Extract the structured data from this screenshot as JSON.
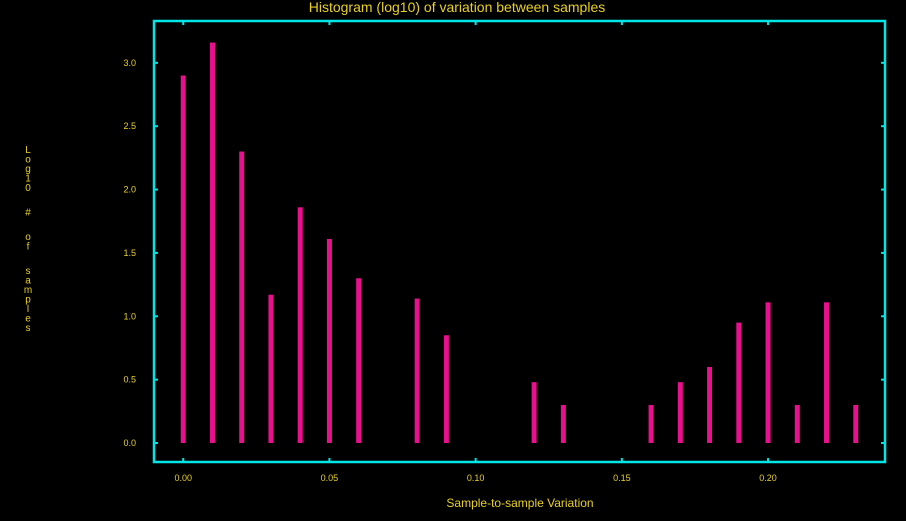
{
  "colors": {
    "background": "#000000",
    "frame": "#00e5e5",
    "text": "#e8d020",
    "bars": "#e8108c"
  },
  "chart_data": {
    "type": "bar",
    "title": "Histogram (log10) of variation between samples",
    "xlabel": "Sample-to-sample Variation",
    "ylabel": "Log10 # of samples",
    "x": [
      0.0,
      0.01,
      0.02,
      0.03,
      0.04,
      0.05,
      0.06,
      0.08,
      0.09,
      0.12,
      0.13,
      0.16,
      0.17,
      0.18,
      0.19,
      0.2,
      0.21,
      0.22,
      0.23
    ],
    "values": [
      2.9,
      3.16,
      2.3,
      1.17,
      1.86,
      1.61,
      1.3,
      1.14,
      0.85,
      0.48,
      0.3,
      0.3,
      0.48,
      0.6,
      0.95,
      1.11,
      0.3,
      1.11,
      0.3
    ],
    "xlim": [
      -0.01,
      0.24
    ],
    "ylim": [
      -0.15,
      3.33
    ],
    "xticks": [
      "0.00",
      "0.05",
      "0.10",
      "0.15",
      "0.20"
    ],
    "yticks": [
      "0.0",
      "0.5",
      "1.0",
      "1.5",
      "2.0",
      "2.5",
      "3.0"
    ],
    "grid": false,
    "legend": "none"
  }
}
